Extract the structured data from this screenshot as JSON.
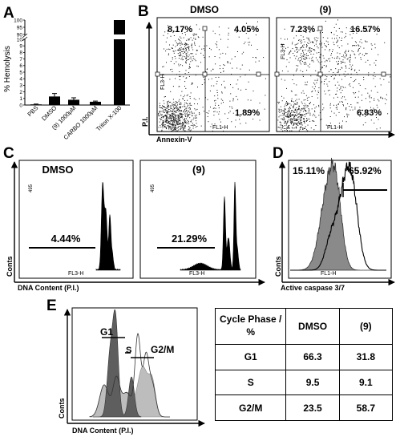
{
  "panels": {
    "A": {
      "letter": "A",
      "ylabel": "% Hemolysis"
    },
    "B": {
      "letter": "B"
    },
    "C": {
      "letter": "C"
    },
    "D": {
      "letter": "D"
    },
    "E": {
      "letter": "E"
    }
  },
  "chart_data": [
    {
      "panel": "A",
      "type": "bar",
      "ylabel": "% Hemolysis",
      "categories": [
        "PBS",
        "DMSO",
        "(9) 1000μM",
        "CARBO 1000μM",
        "Triton X-100"
      ],
      "values": [
        0.1,
        1.3,
        0.8,
        0.5,
        100
      ],
      "errors": [
        0.05,
        0.45,
        0.3,
        0.1,
        0
      ],
      "broken_axis": true,
      "ylim_lower": [
        0,
        10
      ],
      "ylim_upper": [
        90,
        100
      ],
      "yticks_lower": [
        "0",
        "1",
        "2",
        "3",
        "4",
        "5",
        "6",
        "7",
        "8",
        "9",
        "10"
      ],
      "yticks_upper": [
        "90",
        "95",
        "100"
      ]
    },
    {
      "panel": "B",
      "type": "scatter",
      "xlabel": "Annexin-V",
      "ylabel": "P.I.",
      "plots": [
        {
          "title": "DMSO",
          "x_channel": "FL1-H",
          "y_channel": "FL3-H",
          "quadrants": {
            "upper_left": "8.17%",
            "upper_right": "4.05%",
            "lower_right": "1.89%"
          }
        },
        {
          "title": "(9)",
          "x_channel": "FL1-H",
          "y_channel": "FL3-H",
          "quadrants": {
            "upper_left": "7.23%",
            "upper_right": "16.57%",
            "lower_right": "6.83%"
          }
        }
      ]
    },
    {
      "panel": "C",
      "type": "area",
      "xlabel": "DNA Content (P.I.)",
      "ylabel": "Conts",
      "plots": [
        {
          "title": "DMSO",
          "gate": "4.44%",
          "x_channel": "FL3-H",
          "ytick": "495"
        },
        {
          "title": "(9)",
          "gate": "21.29%",
          "x_channel": "FL3-H",
          "ytick": "495"
        }
      ]
    },
    {
      "panel": "D",
      "type": "area",
      "xlabel": "Active caspase 3/7",
      "ylabel": "Conts",
      "x_channel": "FL1-H",
      "left_gate": "15.11%",
      "right_gate": "65.92%"
    },
    {
      "panel": "E",
      "type": "area",
      "xlabel": "DNA Content (P.I.)",
      "ylabel": "Conts",
      "phase_labels": [
        "G1",
        "S",
        "G2/M"
      ]
    }
  ],
  "cycle_table": {
    "header": [
      "Cycle Phase / %",
      "DMSO",
      "(9)"
    ],
    "rows": [
      [
        "G1",
        "66.3",
        "31.8"
      ],
      [
        "S",
        "9.5",
        "9.1"
      ],
      [
        "G2/M",
        "23.5",
        "58.7"
      ]
    ]
  }
}
